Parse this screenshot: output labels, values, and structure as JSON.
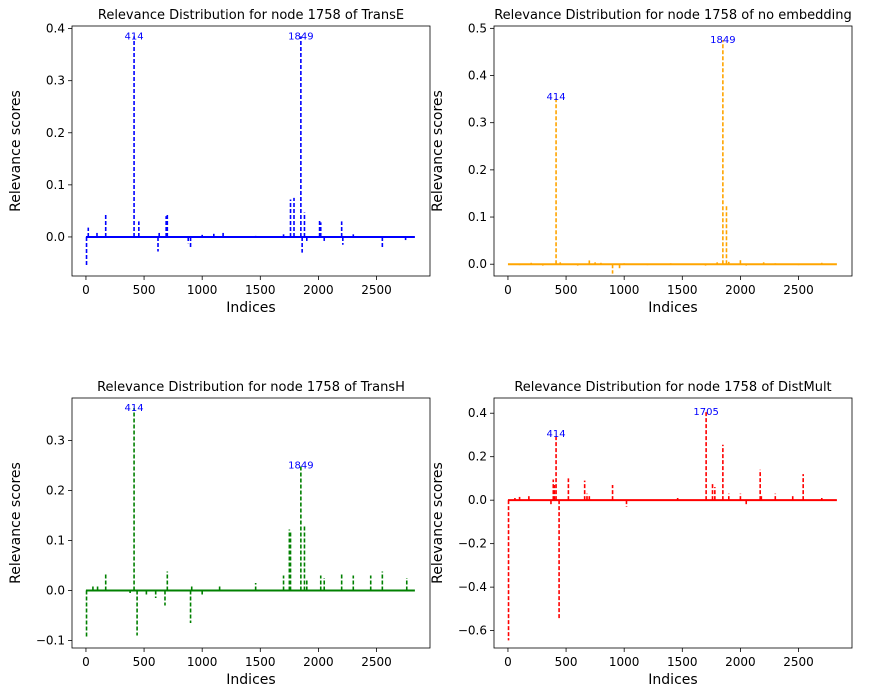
{
  "chart_data": [
    {
      "type": "line",
      "title": "Relevance Distribution for node  1758 of TransE",
      "xlabel": "Indices",
      "ylabel": "Relevance scores",
      "color": "#0000ff",
      "xlim": [
        -120,
        2960
      ],
      "ylim": [
        -0.075,
        0.405
      ],
      "xticks": [
        0,
        500,
        1000,
        1500,
        2000,
        2500
      ],
      "yticks": [
        0.0,
        0.1,
        0.2,
        0.3,
        0.4
      ],
      "ytick_labels": [
        "0.0",
        "0.1",
        "0.2",
        "0.3",
        "0.4"
      ],
      "annotations": [
        {
          "x": 414,
          "y": 0.385,
          "text": "414"
        },
        {
          "x": 1849,
          "y": 0.385,
          "text": "1849"
        }
      ],
      "spikes": [
        [
          5,
          -0.057
        ],
        [
          20,
          0.018
        ],
        [
          95,
          0.01
        ],
        [
          170,
          0.043
        ],
        [
          414,
          0.385
        ],
        [
          455,
          0.03
        ],
        [
          620,
          -0.028
        ],
        [
          630,
          0.01
        ],
        [
          690,
          0.04
        ],
        [
          700,
          0.045
        ],
        [
          880,
          -0.012
        ],
        [
          900,
          -0.02
        ],
        [
          1000,
          0.004
        ],
        [
          1100,
          0.006
        ],
        [
          1180,
          0.008
        ],
        [
          1460,
          0.002
        ],
        [
          1700,
          0.005
        ],
        [
          1760,
          0.072
        ],
        [
          1790,
          0.075
        ],
        [
          1849,
          0.385
        ],
        [
          1860,
          -0.03
        ],
        [
          1880,
          0.047
        ],
        [
          1900,
          -0.008
        ],
        [
          2010,
          0.033
        ],
        [
          2020,
          0.028
        ],
        [
          2050,
          -0.01
        ],
        [
          2200,
          0.03
        ],
        [
          2210,
          -0.015
        ],
        [
          2300,
          0.005
        ],
        [
          2550,
          -0.02
        ],
        [
          2750,
          -0.006
        ]
      ]
    },
    {
      "type": "line",
      "title": "Relevance Distribution for node  1758 of no embedding",
      "xlabel": "Indices",
      "ylabel": "Relevance scores",
      "color": "#ffa500",
      "xlim": [
        -120,
        2960
      ],
      "ylim": [
        -0.025,
        0.505
      ],
      "xticks": [
        0,
        500,
        1000,
        1500,
        2000,
        2500
      ],
      "yticks": [
        0.0,
        0.1,
        0.2,
        0.3,
        0.4,
        0.5
      ],
      "ytick_labels": [
        "0.0",
        "0.1",
        "0.2",
        "0.3",
        "0.4",
        "0.5"
      ],
      "annotations": [
        {
          "x": 414,
          "y": 0.355,
          "text": "414"
        },
        {
          "x": 1849,
          "y": 0.475,
          "text": "1849"
        }
      ],
      "spikes": [
        [
          100,
          -0.002
        ],
        [
          200,
          0.003
        ],
        [
          300,
          -0.003
        ],
        [
          414,
          0.355
        ],
        [
          450,
          0.004
        ],
        [
          600,
          -0.003
        ],
        [
          700,
          0.008
        ],
        [
          750,
          0.004
        ],
        [
          800,
          0.003
        ],
        [
          900,
          -0.02
        ],
        [
          960,
          -0.01
        ],
        [
          1000,
          0.002
        ],
        [
          1200,
          -0.002
        ],
        [
          1400,
          0.002
        ],
        [
          1700,
          -0.003
        ],
        [
          1800,
          0.004
        ],
        [
          1849,
          0.475
        ],
        [
          1880,
          0.125
        ],
        [
          1900,
          0.005
        ],
        [
          2000,
          0.012
        ],
        [
          2050,
          -0.003
        ],
        [
          2200,
          0.004
        ],
        [
          2300,
          0.002
        ],
        [
          2500,
          -0.002
        ],
        [
          2700,
          0.003
        ]
      ]
    },
    {
      "type": "line",
      "title": "Relevance Distribution for node  1758 of TransH",
      "xlabel": "Indices",
      "ylabel": "Relevance scores",
      "color": "#008000",
      "xlim": [
        -120,
        2960
      ],
      "ylim": [
        -0.115,
        0.385
      ],
      "xticks": [
        0,
        500,
        1000,
        1500,
        2000,
        2500
      ],
      "yticks": [
        -0.1,
        0.0,
        0.1,
        0.2,
        0.3
      ],
      "ytick_labels": [
        "−0.1",
        "0.0",
        "0.1",
        "0.2",
        "0.3"
      ],
      "annotations": [
        {
          "x": 414,
          "y": 0.365,
          "text": "414"
        },
        {
          "x": 1849,
          "y": 0.25,
          "text": "1849"
        }
      ],
      "spikes": [
        [
          5,
          -0.092
        ],
        [
          60,
          0.012
        ],
        [
          100,
          0.008
        ],
        [
          170,
          0.036
        ],
        [
          380,
          -0.005
        ],
        [
          414,
          0.365
        ],
        [
          440,
          -0.09
        ],
        [
          520,
          -0.01
        ],
        [
          600,
          -0.015
        ],
        [
          680,
          -0.03
        ],
        [
          700,
          0.038
        ],
        [
          900,
          -0.065
        ],
        [
          910,
          0.008
        ],
        [
          1000,
          -0.01
        ],
        [
          1150,
          0.01
        ],
        [
          1460,
          0.015
        ],
        [
          1700,
          0.03
        ],
        [
          1750,
          0.122
        ],
        [
          1760,
          0.12
        ],
        [
          1849,
          0.25
        ],
        [
          1880,
          0.132
        ],
        [
          1900,
          0.02
        ],
        [
          2020,
          0.03
        ],
        [
          2050,
          0.025
        ],
        [
          2200,
          0.032
        ],
        [
          2300,
          0.03
        ],
        [
          2450,
          0.03
        ],
        [
          2550,
          0.038
        ],
        [
          2760,
          0.025
        ]
      ]
    },
    {
      "type": "line",
      "title": "Relevance Distribution for node  1758 of DistMult",
      "xlabel": "Indices",
      "ylabel": "Relevance scores",
      "color": "#ff0000",
      "xlim": [
        -120,
        2960
      ],
      "ylim": [
        -0.68,
        0.47
      ],
      "xticks": [
        0,
        500,
        1000,
        1500,
        2000,
        2500
      ],
      "yticks": [
        -0.6,
        -0.4,
        -0.2,
        0.0,
        0.2,
        0.4
      ],
      "ytick_labels": [
        "−0.6",
        "−0.4",
        "−0.2",
        "0.0",
        "0.2",
        "0.4"
      ],
      "annotations": [
        {
          "x": 414,
          "y": 0.305,
          "text": "414"
        },
        {
          "x": 1705,
          "y": 0.405,
          "text": "1705"
        }
      ],
      "spikes": [
        [
          5,
          -0.645
        ],
        [
          60,
          0.01
        ],
        [
          100,
          0.015
        ],
        [
          180,
          0.025
        ],
        [
          370,
          -0.02
        ],
        [
          390,
          0.095
        ],
        [
          400,
          0.07
        ],
        [
          414,
          0.305
        ],
        [
          440,
          -0.55
        ],
        [
          520,
          0.1
        ],
        [
          660,
          0.09
        ],
        [
          680,
          0.03
        ],
        [
          700,
          0.025
        ],
        [
          900,
          0.07
        ],
        [
          1020,
          -0.03
        ],
        [
          1460,
          0.01
        ],
        [
          1705,
          0.405
        ],
        [
          1760,
          0.08
        ],
        [
          1780,
          0.06
        ],
        [
          1849,
          0.255
        ],
        [
          1900,
          0.03
        ],
        [
          2000,
          0.03
        ],
        [
          2050,
          -0.02
        ],
        [
          2170,
          0.14
        ],
        [
          2180,
          0.02
        ],
        [
          2300,
          0.03
        ],
        [
          2450,
          0.025
        ],
        [
          2540,
          0.12
        ],
        [
          2700,
          0.01
        ]
      ]
    }
  ]
}
